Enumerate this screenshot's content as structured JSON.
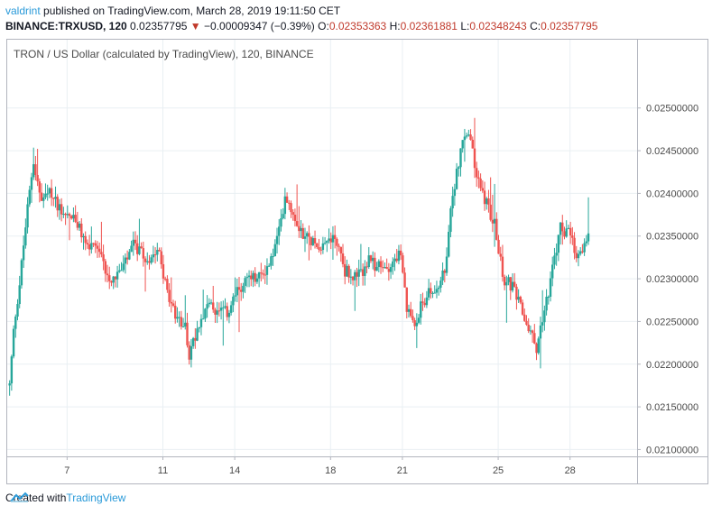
{
  "header": {
    "author": "valdrint",
    "published_text": "published on TradingView.com, March 28, 2019 19:11:50 CET",
    "symbol_line": "BINANCE:TRXUSD, 120",
    "last_price": "0.02357795",
    "change": "−0.00009347 (−0.39%)",
    "o_label": "O:",
    "o": "0.02353363",
    "h_label": "H:",
    "h": "0.02361881",
    "l_label": "L:",
    "l": "0.02348243",
    "c_label": "C:",
    "c": "0.02357795"
  },
  "chart_title": "TRON / US Dollar (calculated by TradingView), 120, BINANCE",
  "footer": {
    "created_with": "Created with",
    "brand": "TradingView"
  },
  "colors": {
    "up": "#26a69a",
    "down": "#ef5350",
    "grid": "#e9eff3",
    "axis_text": "#4a4a4a"
  },
  "chart_data": {
    "type": "candlestick",
    "title": "TRON / US Dollar (calculated by TradingView), 120, BINANCE",
    "x_ticks": [
      "7",
      "11",
      "14",
      "18",
      "21",
      "25",
      "28"
    ],
    "x_tick_positions_day": [
      7,
      11,
      14,
      18,
      21,
      25,
      28
    ],
    "y_ticks": [
      "0.02500000",
      "0.02450000",
      "0.02400000",
      "0.02350000",
      "0.02300000",
      "0.02250000",
      "0.02200000",
      "0.02150000",
      "0.02100000"
    ],
    "ylim": [
      0.02092,
      0.0258
    ],
    "xlim_day": [
      4.5,
      30.8
    ],
    "price_path": [
      [
        4.6,
        0.02175
      ],
      [
        4.8,
        0.0225
      ],
      [
        5.0,
        0.0229
      ],
      [
        5.3,
        0.0237
      ],
      [
        5.6,
        0.0244
      ],
      [
        5.9,
        0.0239
      ],
      [
        6.3,
        0.024
      ],
      [
        6.8,
        0.0238
      ],
      [
        7.3,
        0.0237
      ],
      [
        7.8,
        0.0234
      ],
      [
        8.3,
        0.0233
      ],
      [
        8.8,
        0.023
      ],
      [
        9.3,
        0.0231
      ],
      [
        9.8,
        0.0234
      ],
      [
        10.3,
        0.0232
      ],
      [
        10.8,
        0.0234
      ],
      [
        11.2,
        0.0228
      ],
      [
        11.6,
        0.0225
      ],
      [
        11.9,
        0.0225
      ],
      [
        12.1,
        0.0221
      ],
      [
        12.4,
        0.0224
      ],
      [
        12.8,
        0.0227
      ],
      [
        13.3,
        0.0226
      ],
      [
        13.7,
        0.0226
      ],
      [
        14.0,
        0.0228
      ],
      [
        14.5,
        0.023
      ],
      [
        15.0,
        0.023
      ],
      [
        15.5,
        0.0232
      ],
      [
        15.9,
        0.0236
      ],
      [
        16.1,
        0.024
      ],
      [
        16.4,
        0.0238
      ],
      [
        16.9,
        0.0235
      ],
      [
        17.5,
        0.0234
      ],
      [
        18.2,
        0.0235
      ],
      [
        18.6,
        0.0231
      ],
      [
        19.1,
        0.023
      ],
      [
        19.6,
        0.0232
      ],
      [
        20.2,
        0.0231
      ],
      [
        20.6,
        0.0232
      ],
      [
        20.9,
        0.0233
      ],
      [
        21.2,
        0.0226
      ],
      [
        21.5,
        0.0225
      ],
      [
        22.0,
        0.0228
      ],
      [
        22.5,
        0.0229
      ],
      [
        22.8,
        0.0231
      ],
      [
        23.1,
        0.024
      ],
      [
        23.5,
        0.0246
      ],
      [
        23.8,
        0.0247
      ],
      [
        24.1,
        0.0242
      ],
      [
        24.5,
        0.0239
      ],
      [
        24.9,
        0.0236
      ],
      [
        25.2,
        0.023
      ],
      [
        25.6,
        0.0229
      ],
      [
        26.0,
        0.0226
      ],
      [
        26.3,
        0.0224
      ],
      [
        26.6,
        0.0222
      ],
      [
        26.9,
        0.0226
      ],
      [
        27.2,
        0.023
      ],
      [
        27.6,
        0.0236
      ],
      [
        28.0,
        0.0235
      ],
      [
        28.3,
        0.0232
      ],
      [
        28.6,
        0.0234
      ],
      [
        28.8,
        0.02358
      ]
    ],
    "grid": true
  }
}
